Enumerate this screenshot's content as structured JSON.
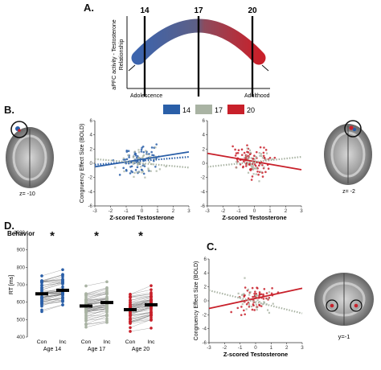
{
  "panels": {
    "a": "A.",
    "b": "B.",
    "c": "C.",
    "d": "D."
  },
  "panel_a": {
    "ages": [
      "14",
      "17",
      "20"
    ],
    "ylabel_line1": "aPFC activity - Testosterone",
    "ylabel_line2": "Relationship",
    "x_left": "Adolescence",
    "x_right": "Adulthood"
  },
  "legend": {
    "items": [
      {
        "label": "14",
        "color": "#2a5fa8"
      },
      {
        "label": "17",
        "color": "#a9b3a3"
      },
      {
        "label": "20",
        "color": "#c8202a"
      }
    ]
  },
  "brains": {
    "b_left_caption": "z= -10",
    "b_right_caption": "z= -2",
    "c_caption": "y=-1"
  },
  "colors": {
    "blue": "#2a5fa8",
    "gray": "#a9b3a3",
    "red": "#c8202a"
  },
  "chart_data": [
    {
      "id": "B-left",
      "type": "scatter",
      "ylabel": "Congruency Effect Size (BOLD)",
      "xlabel": "Z-scored Testosterone",
      "xlim": [
        -3,
        3
      ],
      "ylim": [
        -6,
        6
      ],
      "xticks": [
        -3,
        -2,
        -1,
        0,
        1,
        2,
        3
      ],
      "yticks": [
        -6,
        -4,
        -2,
        0,
        2,
        4,
        6
      ],
      "lines": [
        {
          "series": "14",
          "x": [
            -3,
            3
          ],
          "y": [
            -0.5,
            1.6
          ]
        },
        {
          "series": "14-dotted",
          "x": [
            -3,
            3
          ],
          "y": [
            -0.2,
            0.9
          ]
        },
        {
          "series": "17",
          "x": [
            -3,
            3
          ],
          "y": [
            0.6,
            -0.6
          ]
        }
      ]
    },
    {
      "id": "B-right",
      "type": "scatter",
      "ylabel": "",
      "xlabel": "Z-scored Testosterone",
      "xlim": [
        -3,
        3
      ],
      "ylim": [
        -6,
        6
      ],
      "xticks": [
        -3,
        -2,
        -1,
        0,
        1,
        2,
        3
      ],
      "yticks": [
        -6,
        -4,
        -2,
        0,
        2,
        4,
        6
      ],
      "lines": [
        {
          "series": "20",
          "x": [
            -3,
            3
          ],
          "y": [
            1.4,
            -0.9
          ]
        },
        {
          "series": "17",
          "x": [
            -3,
            3
          ],
          "y": [
            -0.5,
            0.9
          ]
        }
      ]
    },
    {
      "id": "C",
      "type": "scatter",
      "ylabel": "Congruency Effect Size (BOLD)",
      "xlabel": "Z-scored Testosterone",
      "xlim": [
        -3,
        3
      ],
      "ylim": [
        -6,
        6
      ],
      "xticks": [
        -3,
        -2,
        -1,
        0,
        1,
        2,
        3
      ],
      "yticks": [
        -6,
        -4,
        -2,
        0,
        2,
        4,
        6
      ],
      "lines": [
        {
          "series": "20",
          "x": [
            -3,
            3
          ],
          "y": [
            -1.1,
            1.8
          ]
        },
        {
          "series": "17",
          "x": [
            -3,
            3
          ],
          "y": [
            1.5,
            -1.8
          ]
        }
      ]
    },
    {
      "id": "D",
      "type": "bar",
      "title": "Behavior",
      "ylabel": "RT [ms]",
      "ylim": [
        400,
        1000
      ],
      "yticks": [
        400,
        500,
        600,
        700,
        800,
        900,
        1000
      ],
      "groups": [
        {
          "age": "Age 14",
          "conditions": [
            "Con",
            "Inc"
          ],
          "means": [
            648,
            668
          ],
          "color": "#2a5fa8",
          "significance": "*"
        },
        {
          "age": "Age 17",
          "conditions": [
            "Con",
            "Inc"
          ],
          "means": [
            578,
            598
          ],
          "color": "#a9b3a3",
          "significance": "*"
        },
        {
          "age": "Age 20",
          "conditions": [
            "Con",
            "Inc"
          ],
          "means": [
            557,
            585
          ],
          "color": "#c8202a",
          "significance": "*"
        }
      ]
    }
  ]
}
